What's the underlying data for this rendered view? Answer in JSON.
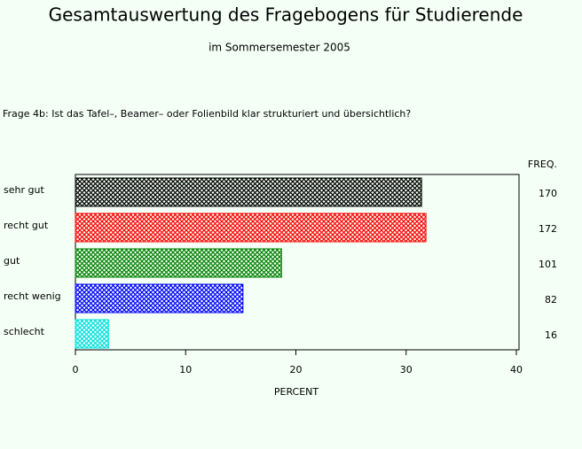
{
  "chart_data": {
    "type": "hbar",
    "title": "Gesamtauswertung des Fragebogens für Studierende",
    "subtitle": "im Sommersemester 2005",
    "question": "Frage 4b: Ist das Tafel–, Beamer– oder Folienbild klar strukturiert und übersichtlich?",
    "categories": [
      "sehr gut",
      "recht gut",
      "gut",
      "recht wenig",
      "schlecht"
    ],
    "values": [
      31.4,
      31.8,
      18.7,
      15.2,
      3.0
    ],
    "colors": [
      "#000000",
      "#ff0000",
      "#008000",
      "#0000ff",
      "#00e0e0"
    ],
    "freq_header": "FREQ.",
    "freq": [
      170,
      172,
      101,
      82,
      16
    ],
    "xlabel": "PERCENT",
    "xlim": [
      0,
      40
    ],
    "xticks": [
      0,
      10,
      20,
      30,
      40
    ]
  }
}
